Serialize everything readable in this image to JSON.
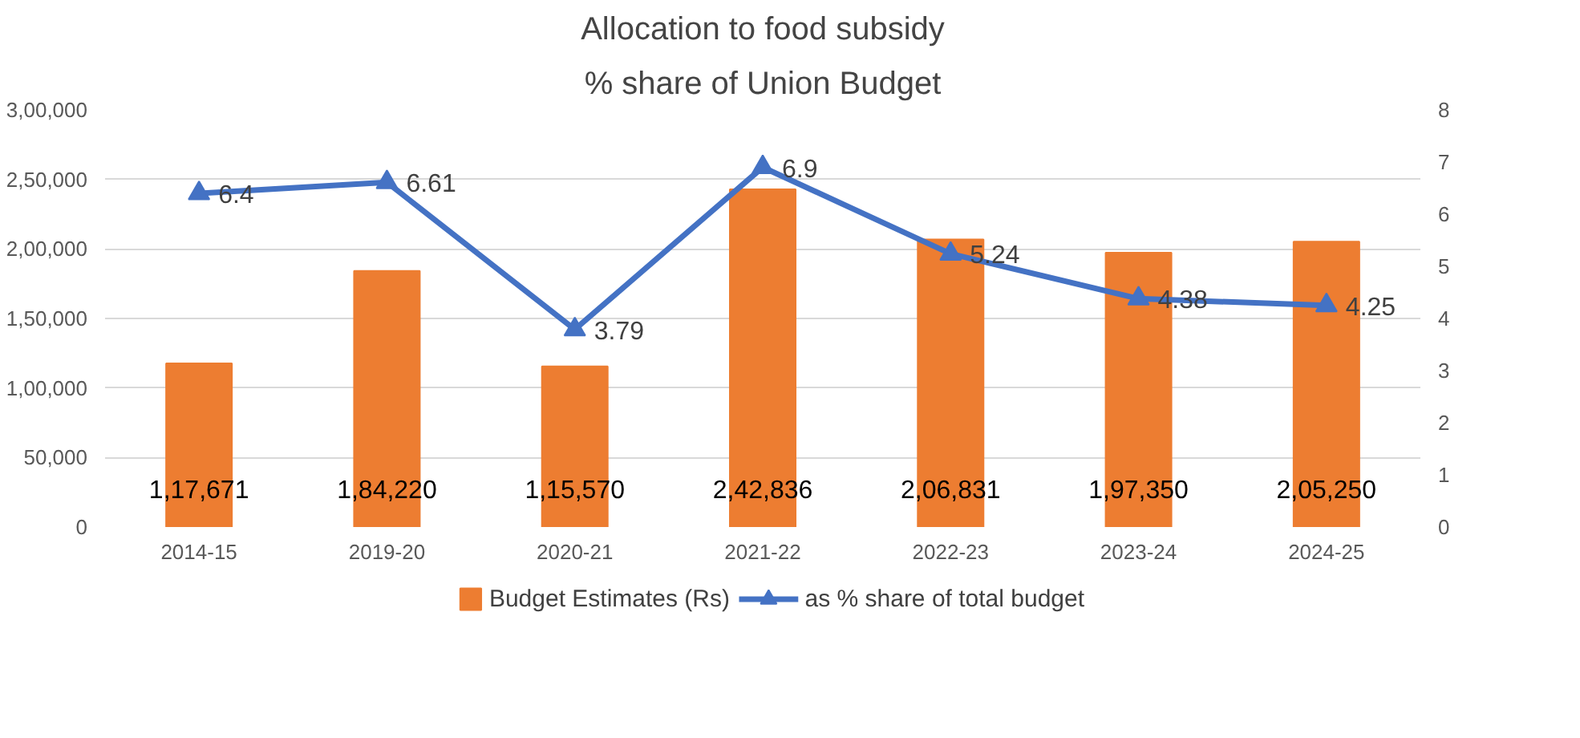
{
  "chart_data": {
    "type": "bar",
    "title": "Allocation to food subsidy",
    "subtitle": "% share of Union Budget",
    "categories": [
      "2014-15",
      "2019-20",
      "2020-21",
      "2021-22",
      "2022-23",
      "2023-24",
      "2024-25"
    ],
    "series": [
      {
        "name": "Budget Estimates (Rs)",
        "type": "bar",
        "color": "#ed7d31",
        "values": [
          117671,
          184220,
          115570,
          242836,
          206831,
          197350,
          205250
        ],
        "value_labels": [
          "1,17,671",
          "1,84,220",
          "1,15,570",
          "2,42,836",
          "2,06,831",
          "1,97,350",
          "2,05,250"
        ]
      },
      {
        "name": "as % share of total budget",
        "type": "line",
        "axis": "y2",
        "color": "#4472c4",
        "marker": "triangle",
        "values": [
          6.4,
          6.61,
          3.79,
          6.9,
          5.24,
          4.38,
          4.25
        ],
        "value_labels": [
          "6.4",
          "6.61",
          "3.79",
          "6.9",
          "5.24",
          "4.38",
          "4.25"
        ]
      }
    ],
    "ylim": [
      0,
      300000
    ],
    "yticks": [
      0,
      {
        "value": 50000,
        "label": "50,000"
      },
      {
        "value": 100000,
        "label": "1,00,000"
      },
      {
        "value": 150000,
        "label": "1,50,000"
      },
      {
        "value": 200000,
        "label": "2,00,000"
      },
      {
        "value": 250000,
        "label": "2,50,000"
      },
      {
        "value": 300000,
        "label": "3,00,000"
      }
    ],
    "y2lim": [
      0,
      8
    ],
    "y2ticks": [
      0,
      1,
      2,
      3,
      4,
      5,
      6,
      7,
      8
    ],
    "grid": "y",
    "legend": "bottom"
  }
}
